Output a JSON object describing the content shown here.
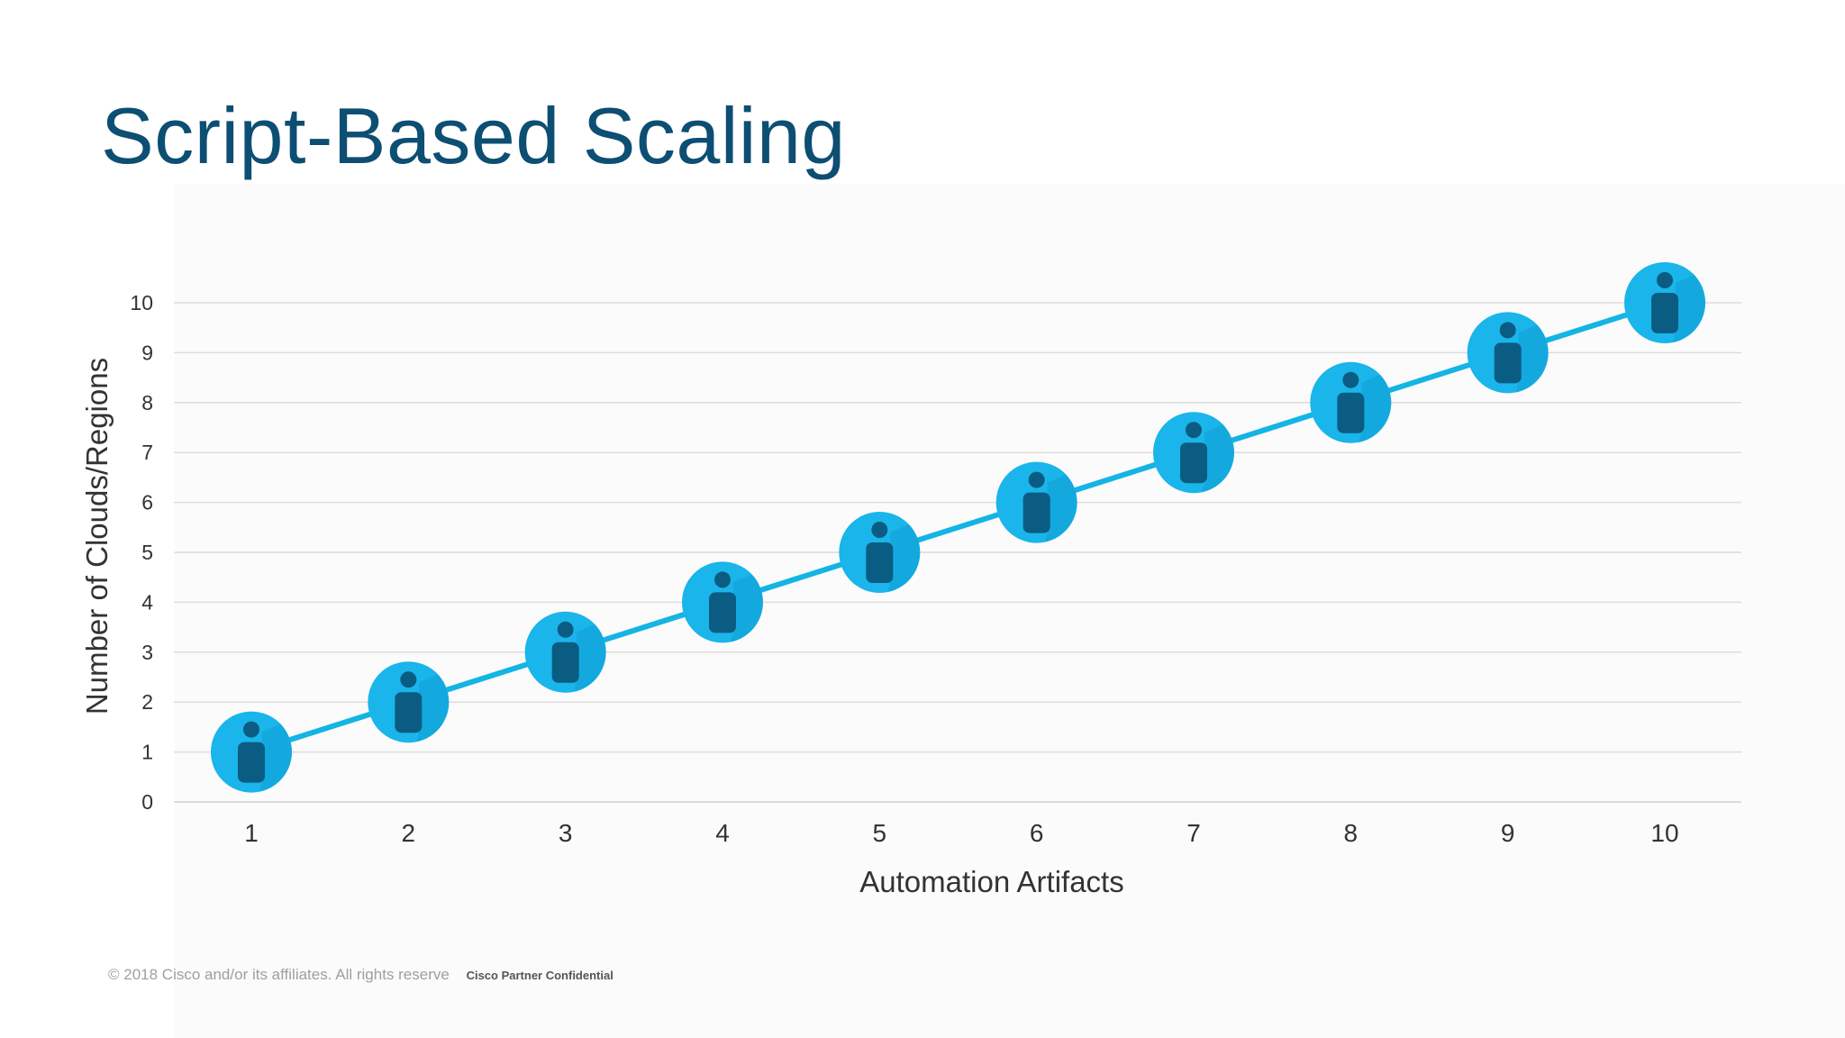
{
  "slide": {
    "title": "Script-Based Scaling",
    "footer_copyright": "© 2018  Cisco and/or its affiliates. All rights reserve",
    "footer_confidential": "Cisco Partner Confidential"
  },
  "colors": {
    "title": "#0d4e73",
    "line": "#14b4e4",
    "marker_fill": "#1ab5ea",
    "marker_shadow": "#0f9fd6",
    "person_icon": "#0b5c82",
    "gridline": "#dddddd",
    "axis_text": "#333333"
  },
  "icons": {
    "marker": "person-icon"
  },
  "chart_data": {
    "type": "line",
    "title": "",
    "xlabel": "Automation Artifacts",
    "ylabel": "Number of Clouds/Regions",
    "x": [
      1,
      2,
      3,
      4,
      5,
      6,
      7,
      8,
      9,
      10
    ],
    "series": [
      {
        "name": "Script-Based Scaling",
        "values": [
          1,
          2,
          3,
          4,
          5,
          6,
          7,
          8,
          9,
          10
        ]
      }
    ],
    "x_tick_labels": [
      "1",
      "2",
      "3",
      "4",
      "5",
      "6",
      "7",
      "8",
      "9",
      "10"
    ],
    "y_tick_labels": [
      "0",
      "1",
      "2",
      "3",
      "4",
      "5",
      "6",
      "7",
      "8",
      "9",
      "10"
    ],
    "xlim": [
      1,
      10
    ],
    "ylim": [
      0,
      10
    ],
    "grid": true,
    "legend": "none",
    "marker": "person-icon"
  }
}
